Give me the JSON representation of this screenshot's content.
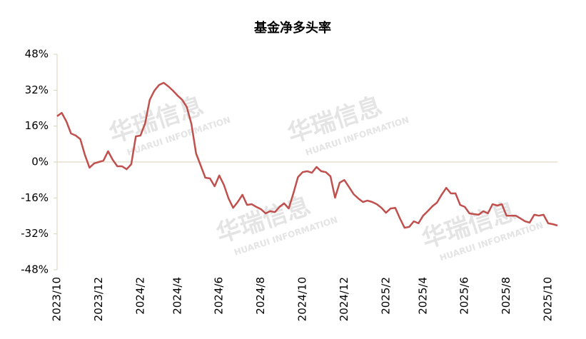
{
  "chart_data": {
    "type": "line",
    "title": "基金净多头率",
    "watermark": "华瑞信息",
    "watermark_sub": "HUARUI INFORMATION",
    "categories": [
      "2023/10",
      null,
      null,
      null,
      null,
      null,
      null,
      null,
      null,
      "2023/12",
      null,
      null,
      null,
      null,
      null,
      null,
      null,
      null,
      "2024/2",
      null,
      null,
      null,
      null,
      null,
      null,
      null,
      "2024/4",
      null,
      null,
      null,
      null,
      null,
      null,
      null,
      null,
      "2024/6",
      null,
      null,
      null,
      null,
      null,
      null,
      null,
      null,
      "2024/8",
      null,
      null,
      null,
      null,
      null,
      null,
      null,
      null,
      "2024/10",
      null,
      null,
      null,
      null,
      null,
      null,
      null,
      null,
      "2024/12",
      null,
      null,
      null,
      null,
      null,
      null,
      null,
      null,
      "2025/2",
      null,
      null,
      null,
      null,
      null,
      null,
      null,
      "2025/4",
      null,
      null,
      null,
      null,
      null,
      null,
      null,
      null,
      "2025/6",
      null,
      null,
      null,
      null,
      null,
      null,
      null,
      null,
      "2025/8",
      null,
      null,
      null,
      null,
      null,
      null,
      null,
      null,
      "2025/10",
      null,
      null
    ],
    "series": [
      {
        "name": "基金净多头率",
        "color": "#c0504d",
        "values": [
          20.4,
          21.9,
          18.1,
          12.7,
          11.8,
          10.2,
          3.2,
          -2.5,
          -0.6,
          0,
          0.6,
          4.8,
          1.0,
          -1.9,
          -1.9,
          -3.2,
          -1.0,
          11.4,
          11.8,
          17.2,
          27.7,
          31.8,
          34.3,
          35.3,
          33.7,
          31.8,
          29.6,
          27.7,
          24.5,
          16.9,
          3.8,
          -1.6,
          -7.0,
          -7.3,
          -10.8,
          -6.0,
          -10.2,
          -16.2,
          -20.4,
          -17.8,
          -14.6,
          -19.1,
          -18.8,
          -20.0,
          -21.0,
          -22.9,
          -21.9,
          -22.3,
          -20.0,
          -18.4,
          -20.7,
          -14.0,
          -6.7,
          -4.5,
          -4.1,
          -4.8,
          -2.2,
          -4.1,
          -4.5,
          -6.4,
          -15.9,
          -9.2,
          -8.0,
          -11.1,
          -14.3,
          -16.2,
          -17.8,
          -17.2,
          -17.8,
          -18.8,
          -20.4,
          -22.6,
          -20.7,
          -20.4,
          -25.1,
          -29.3,
          -28.9,
          -26.4,
          -27.3,
          -23.9,
          -21.9,
          -19.7,
          -18.1,
          -14.6,
          -11.5,
          -14.0,
          -14.0,
          -19.1,
          -20.0,
          -22.9,
          -23.2,
          -23.5,
          -21.9,
          -22.9,
          -18.8,
          -19.4,
          -18.8,
          -23.9,
          -23.9,
          -23.9,
          -25.1,
          -26.4,
          -27.0,
          -23.5,
          -23.9,
          -23.5,
          -27.3,
          -27.7,
          -28.3
        ]
      }
    ],
    "ylim": [
      -48,
      48
    ],
    "yticks": [
      {
        "value": 48,
        "label": "48%"
      },
      {
        "value": 32,
        "label": "32%"
      },
      {
        "value": 16,
        "label": "16%"
      },
      {
        "value": 0,
        "label": "0%"
      },
      {
        "value": -16,
        "label": "-16%"
      },
      {
        "value": -32,
        "label": "-32%"
      },
      {
        "value": -48,
        "label": "-48%"
      }
    ],
    "grid": false
  }
}
